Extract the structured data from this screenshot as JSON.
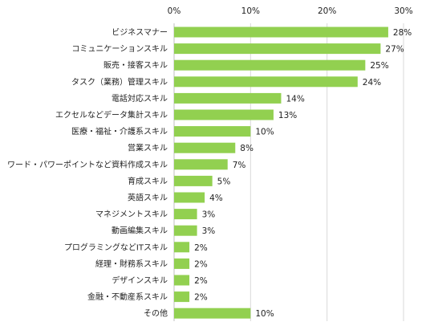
{
  "chart_data": {
    "type": "bar",
    "orientation": "horizontal",
    "categories": [
      "ビジネスマナー",
      "コミュニケーションスキル",
      "販売・接客スキル",
      "タスク（業務）管理スキル",
      "電話対応スキル",
      "エクセルなどデータ集計スキル",
      "医療・福祉・介護系スキル",
      "営業スキル",
      "ワード・パワーポイントなど資料作成スキル",
      "育成スキル",
      "英語スキル",
      "マネジメントスキル",
      "動画編集スキル",
      "プログラミングなどITスキル",
      "経理・財務系スキル",
      "デザインスキル",
      "金融・不動産系スキル",
      "その他"
    ],
    "values": [
      28,
      27,
      25,
      24,
      14,
      13,
      10,
      8,
      7,
      5,
      4,
      3,
      3,
      2,
      2,
      2,
      2,
      10
    ],
    "data_labels": [
      "28%",
      "27%",
      "25%",
      "24%",
      "14%",
      "13%",
      "10%",
      "8%",
      "7%",
      "5%",
      "4%",
      "3%",
      "3%",
      "2%",
      "2%",
      "2%",
      "2%",
      "10%"
    ],
    "xlim": [
      0,
      30
    ],
    "ticks": [
      0,
      10,
      20,
      30
    ],
    "tick_labels": [
      "0%",
      "10%",
      "20%",
      "30%"
    ],
    "tick_position": "top",
    "grid": true,
    "title": "",
    "xlabel": "",
    "ylabel": "",
    "bar_color": "#92d050"
  }
}
